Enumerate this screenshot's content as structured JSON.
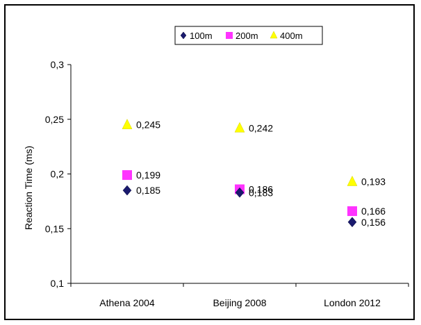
{
  "chart_data": {
    "type": "scatter",
    "title": "",
    "xlabel": "",
    "ylabel": "Reaction Time (ms)",
    "categories": [
      "Athena 2004",
      "Beijing 2008",
      "London 2012"
    ],
    "ylim": [
      0.1,
      0.3
    ],
    "yticks": [
      "0,1",
      "0,15",
      "0,2",
      "0,25",
      "0,3"
    ],
    "ytick_values": [
      0.1,
      0.15,
      0.2,
      0.25,
      0.3
    ],
    "grid": false,
    "legend_position": "top",
    "series": [
      {
        "name": "100m",
        "marker": "diamond",
        "color": "#1a1a6e",
        "values": [
          0.185,
          0.183,
          0.156
        ],
        "labels": [
          "0,185",
          "0,183",
          "0,156"
        ]
      },
      {
        "name": "200m",
        "marker": "square",
        "color": "#ff33ff",
        "values": [
          0.199,
          0.186,
          0.166
        ],
        "labels": [
          "0,199",
          "0,186",
          "0,166"
        ]
      },
      {
        "name": "400m",
        "marker": "triangle",
        "color": "#ffff00",
        "values": [
          0.245,
          0.242,
          0.193
        ],
        "labels": [
          "0,245",
          "0,242",
          "0,193"
        ]
      }
    ]
  }
}
